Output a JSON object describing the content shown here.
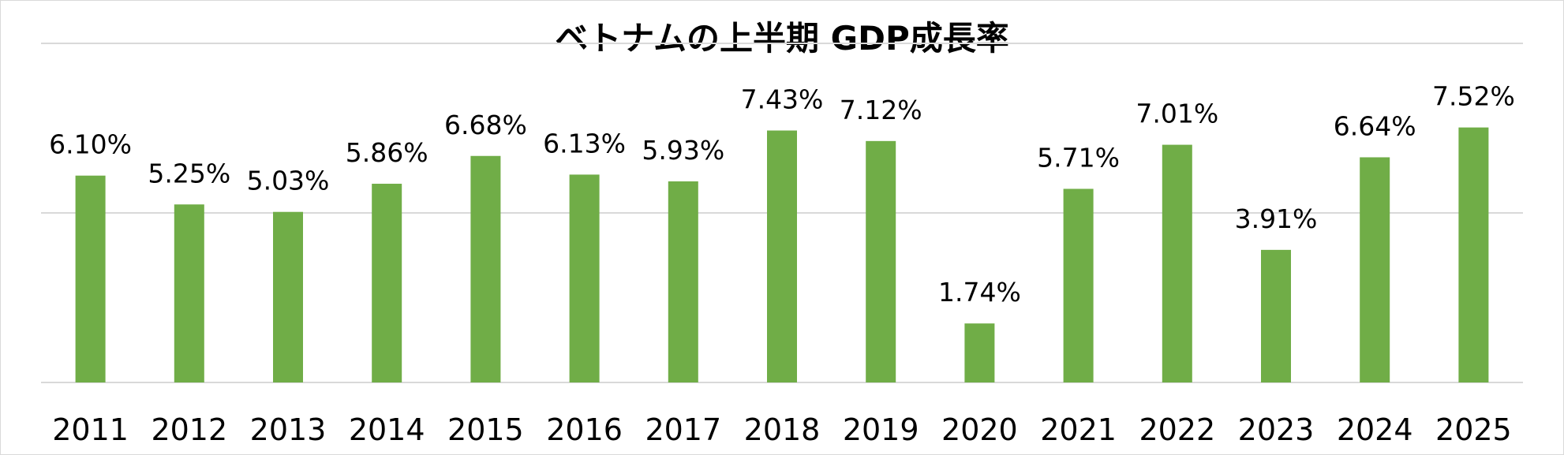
{
  "chart_data": {
    "type": "bar",
    "title": "ベトナムの上半期 GDP成長率",
    "categories": [
      "2011",
      "2012",
      "2013",
      "2014",
      "2015",
      "2016",
      "2017",
      "2018",
      "2019",
      "2020",
      "2021",
      "2022",
      "2023",
      "2024",
      "2025"
    ],
    "values": [
      6.1,
      5.25,
      5.03,
      5.86,
      6.68,
      6.13,
      5.93,
      7.43,
      7.12,
      1.74,
      5.71,
      7.01,
      3.91,
      6.64,
      7.52
    ],
    "data_labels": [
      "6.10%",
      "5.25%",
      "5.03%",
      "5.86%",
      "6.68%",
      "6.13%",
      "5.93%",
      "7.43%",
      "7.12%",
      "1.74%",
      "5.71%",
      "7.01%",
      "3.91%",
      "6.64%",
      "7.52%"
    ],
    "ylim": [
      0,
      10
    ],
    "y_gridlines": [
      0,
      5,
      10
    ],
    "grid": true,
    "legend": "none",
    "bar_color": "#70AD47",
    "gridline_color": "#d9d9d9"
  }
}
